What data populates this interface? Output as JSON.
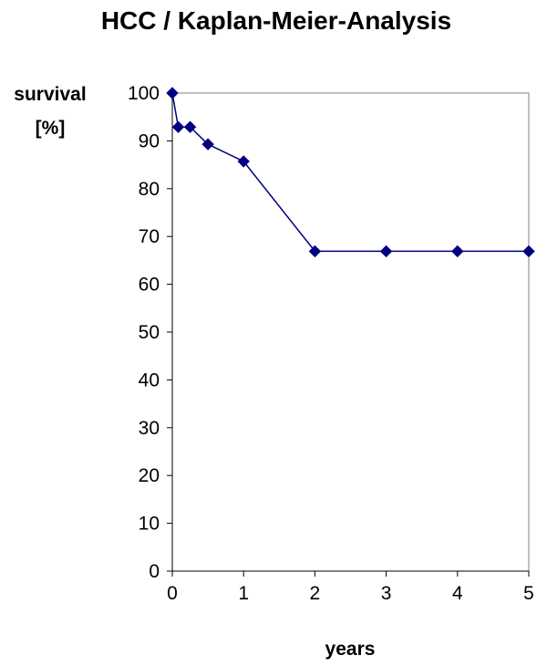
{
  "chart_data": {
    "type": "line",
    "title": "HCC / Kaplan-Meier-Analysis",
    "ylabel_line1": "survival",
    "ylabel_line2": "[%]",
    "xlabel": "years",
    "xlim": [
      0,
      5
    ],
    "ylim": [
      0,
      100
    ],
    "x_ticks": [
      0,
      1,
      2,
      3,
      4,
      5
    ],
    "y_ticks": [
      0,
      10,
      20,
      30,
      40,
      50,
      60,
      70,
      80,
      90,
      100
    ],
    "grid": false,
    "legend": "none",
    "series": [
      {
        "color": "#000080",
        "marker": "diamond",
        "x": [
          0,
          0.083,
          0.25,
          0.5,
          1,
          2,
          3,
          4,
          5
        ],
        "y": [
          100,
          92.9,
          92.9,
          89.3,
          85.7,
          66.9,
          66.9,
          66.9,
          66.9
        ]
      }
    ]
  }
}
